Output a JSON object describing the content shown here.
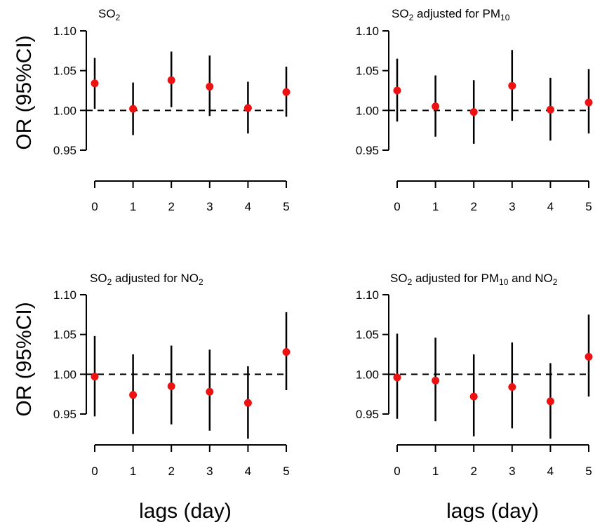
{
  "figure": {
    "ylabel": "OR (95%CI)",
    "xlabel": "lags (day)"
  },
  "chart_data": [
    {
      "type": "scatter",
      "title": {
        "base": "SO",
        "sub": "2",
        "rest": ""
      },
      "x": [
        0,
        1,
        2,
        3,
        4,
        5
      ],
      "y": [
        1.034,
        1.002,
        1.038,
        1.03,
        1.003,
        1.023
      ],
      "lower": [
        1.002,
        0.969,
        1.004,
        0.993,
        0.971,
        0.992
      ],
      "upper": [
        1.066,
        1.035,
        1.074,
        1.069,
        1.036,
        1.055
      ],
      "xticks": [
        "0",
        "1",
        "2",
        "3",
        "4",
        "5"
      ],
      "yticks": [
        "1.10",
        "1.05",
        "1.00",
        "0.95"
      ],
      "ylim": [
        0.95,
        1.1
      ],
      "reference_line": 1.0,
      "point_color": "#ee1111"
    },
    {
      "type": "scatter",
      "title": {
        "base": "SO",
        "sub": "2",
        "rest": " adjusted for PM",
        "sub2": "10",
        "rest2": ""
      },
      "x": [
        0,
        1,
        2,
        3,
        4,
        5
      ],
      "y": [
        1.025,
        1.005,
        0.998,
        1.031,
        1.001,
        1.01
      ],
      "lower": [
        0.986,
        0.967,
        0.958,
        0.987,
        0.962,
        0.971
      ],
      "upper": [
        1.065,
        1.044,
        1.038,
        1.076,
        1.041,
        1.052
      ],
      "xticks": [
        "0",
        "1",
        "2",
        "3",
        "4",
        "5"
      ],
      "yticks": [
        "1.10",
        "1.05",
        "1.00",
        "0.95"
      ],
      "ylim": [
        0.95,
        1.1
      ],
      "reference_line": 1.0,
      "point_color": "#ee1111"
    },
    {
      "type": "scatter",
      "title": {
        "base": "SO",
        "sub": "2",
        "rest": " adjusted for NO",
        "sub2": "2",
        "rest2": ""
      },
      "x": [
        0,
        1,
        2,
        3,
        4,
        5
      ],
      "y": [
        0.997,
        0.974,
        0.985,
        0.978,
        0.964,
        1.028
      ],
      "lower": [
        0.947,
        0.925,
        0.937,
        0.929,
        0.919,
        0.98
      ],
      "upper": [
        1.048,
        1.025,
        1.036,
        1.031,
        1.01,
        1.078
      ],
      "xticks": [
        "0",
        "1",
        "2",
        "3",
        "4",
        "5"
      ],
      "yticks": [
        "1.10",
        "1.05",
        "1.00",
        "0.95"
      ],
      "ylim": [
        0.95,
        1.1
      ],
      "reference_line": 1.0,
      "point_color": "#ee1111"
    },
    {
      "type": "scatter",
      "title": {
        "base": "SO",
        "sub": "2",
        "rest": " adjusted for PM",
        "sub2": "10",
        "rest2": " and NO",
        "sub3": "2"
      },
      "x": [
        0,
        1,
        2,
        3,
        4,
        5
      ],
      "y": [
        0.996,
        0.992,
        0.972,
        0.984,
        0.966,
        1.022
      ],
      "lower": [
        0.944,
        0.941,
        0.922,
        0.932,
        0.919,
        0.972
      ],
      "upper": [
        1.051,
        1.046,
        1.025,
        1.04,
        1.014,
        1.075
      ],
      "xticks": [
        "0",
        "1",
        "2",
        "3",
        "4",
        "5"
      ],
      "yticks": [
        "1.10",
        "1.05",
        "1.00",
        "0.95"
      ],
      "ylim": [
        0.95,
        1.1
      ],
      "reference_line": 1.0,
      "point_color": "#ee1111"
    }
  ]
}
